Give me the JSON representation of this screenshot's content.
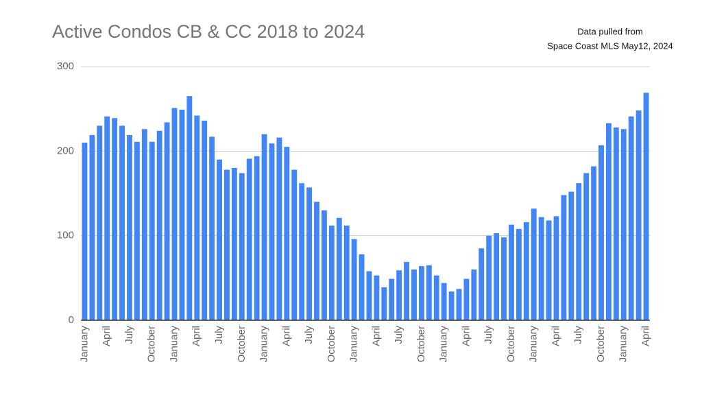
{
  "chart_data": {
    "type": "bar",
    "title": "Active Condos CB & CC 2018 to 2024",
    "annotations": [
      "Data pulled from",
      "Space Coast MLS May12, 2024"
    ],
    "categories": [
      "January",
      null,
      null,
      "April",
      null,
      null,
      "July",
      null,
      null,
      "October",
      null,
      null,
      "January",
      null,
      null,
      "April",
      null,
      null,
      "July",
      null,
      null,
      "October",
      null,
      null,
      "January",
      null,
      null,
      "April",
      null,
      null,
      "July",
      null,
      null,
      "October",
      null,
      null,
      "January",
      null,
      null,
      "April",
      null,
      null,
      "July",
      null,
      null,
      "October",
      null,
      null,
      "January",
      null,
      null,
      "April",
      null,
      null,
      "July",
      null,
      null,
      "October",
      null,
      null,
      "January",
      null,
      null,
      "April",
      null,
      null,
      "July",
      null,
      null,
      "October",
      null,
      null,
      "January",
      null,
      null,
      "April"
    ],
    "values": [
      210,
      219,
      230,
      241,
      239,
      230,
      219,
      211,
      226,
      211,
      224,
      234,
      251,
      249,
      265,
      242,
      236,
      217,
      190,
      178,
      180,
      174,
      191,
      194,
      220,
      209,
      216,
      205,
      178,
      162,
      157,
      140,
      130,
      112,
      121,
      112,
      96,
      78,
      58,
      53,
      39,
      49,
      59,
      69,
      60,
      64,
      65,
      53,
      44,
      34,
      37,
      49,
      60,
      85,
      100,
      103,
      98,
      113,
      108,
      116,
      132,
      122,
      118,
      123,
      148,
      152,
      162,
      174,
      182,
      207,
      233,
      228,
      226,
      241,
      248,
      269
    ],
    "color": "#4285f4",
    "ylim": [
      0,
      300
    ],
    "yticks": [
      0,
      100,
      200,
      300
    ],
    "grid": true
  }
}
